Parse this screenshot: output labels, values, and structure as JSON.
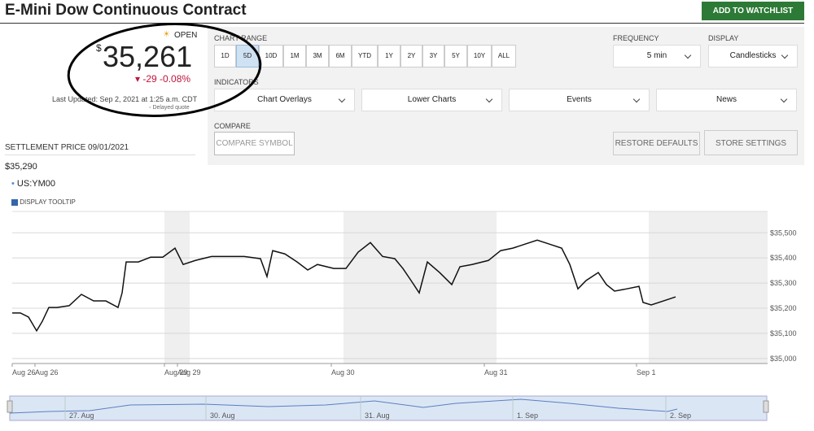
{
  "header": {
    "title": "E-Mini Dow Continuous Contract",
    "watchlist_button": "ADD TO WATCHLIST"
  },
  "quote": {
    "status": "OPEN",
    "currency": "$",
    "price": "35,261",
    "change": "-29",
    "change_percent": "-0.08%",
    "last_updated": "Last Updated: Sep 2, 2021 at 1:25 a.m. CDT",
    "delayed": "Delayed quote"
  },
  "settlement": {
    "label": "SETTLEMENT PRICE 09/01/2021",
    "value": "$35,290"
  },
  "controls": {
    "chart_range_label": "CHART RANGE",
    "ranges": [
      "1D",
      "5D",
      "10D",
      "1M",
      "3M",
      "6M",
      "YTD",
      "1Y",
      "2Y",
      "3Y",
      "5Y",
      "10Y",
      "ALL"
    ],
    "active_range": "5D",
    "frequency_label": "FREQUENCY",
    "frequency": "5 min",
    "display_label": "DISPLAY",
    "display": "Candlesticks",
    "indicators_label": "INDICATORS",
    "indicators": [
      "Chart Overlays",
      "Lower Charts",
      "Events",
      "News"
    ],
    "compare_label": "COMPARE",
    "compare_placeholder": "COMPARE SYMBOL",
    "restore": "RESTORE DEFAULTS",
    "store": "STORE SETTINGS"
  },
  "tooltip_toggle": "DISPLAY TOOLTIP",
  "chart_data": {
    "type": "line",
    "x": [
      0,
      10,
      20,
      30,
      37,
      45,
      55,
      70,
      85,
      100,
      115,
      130,
      135,
      140,
      155,
      170,
      185,
      200,
      210,
      225,
      245,
      265,
      285,
      305,
      313,
      320,
      335,
      350,
      363,
      375,
      395,
      410,
      425,
      440,
      455,
      470,
      480,
      490,
      500,
      510,
      525,
      540,
      550,
      565,
      585,
      600,
      615,
      630,
      645,
      660,
      675,
      685,
      695,
      705,
      720,
      730,
      740,
      755,
      770,
      775,
      785,
      800,
      815
    ],
    "series": [
      {
        "name": "US:YM00",
        "color": "#111",
        "values": [
          35181,
          35181,
          35165,
          35110,
          35148,
          35203,
          35203,
          35210,
          35255,
          35229,
          35229,
          35203,
          35261,
          35384,
          35384,
          35403,
          35403,
          35439,
          35374,
          35390,
          35406,
          35406,
          35406,
          35397,
          35326,
          35429,
          35416,
          35384,
          35352,
          35374,
          35358,
          35358,
          35423,
          35461,
          35406,
          35397,
          35358,
          35310,
          35261,
          35384,
          35342,
          35294,
          35365,
          35374,
          35390,
          35429,
          35439,
          35455,
          35471,
          35455,
          35439,
          35374,
          35277,
          35310,
          35342,
          35294,
          35268,
          35277,
          35287,
          35223,
          35213,
          35229,
          35245
        ]
      }
    ],
    "xlim": [
      0,
      928
    ],
    "xticks": [
      {
        "value": 0,
        "label": "Aug 26"
      },
      {
        "value": 28,
        "label": "Aug 26"
      },
      {
        "value": 187,
        "label": "Aug 29"
      },
      {
        "value": 203,
        "label": "Aug 29"
      },
      {
        "value": 392,
        "label": "Aug 30"
      },
      {
        "value": 580,
        "label": "Aug 31"
      },
      {
        "value": 767,
        "label": "Sep 1"
      }
    ],
    "ylim": [
      34980,
      35585
    ],
    "yticks": [
      {
        "value": 35000,
        "label": "$35,000"
      },
      {
        "value": 35100,
        "label": "$35,100"
      },
      {
        "value": 35200,
        "label": "$35,200"
      },
      {
        "value": 35300,
        "label": "$35,300"
      },
      {
        "value": 35400,
        "label": "$35,400"
      },
      {
        "value": 35500,
        "label": "$35,500"
      }
    ],
    "grid": true
  },
  "navigator": {
    "labels": [
      "27. Aug",
      "30. Aug",
      "31. Aug",
      "1. Sep",
      "2. Sep"
    ]
  }
}
